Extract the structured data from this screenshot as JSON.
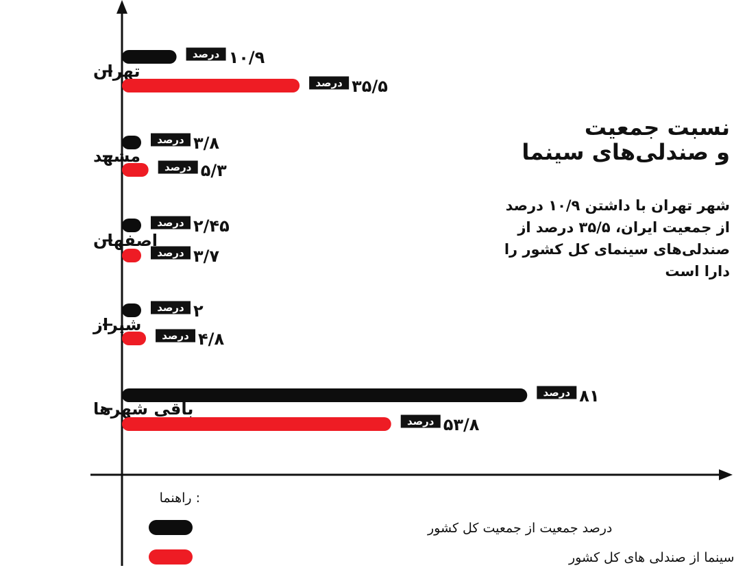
{
  "chart_data": {
    "type": "bar",
    "orientation": "horizontal",
    "categories": [
      "تهران",
      "مشهد",
      "اصفهان",
      "شیراز",
      "باقی شهرها"
    ],
    "series": [
      {
        "name": "درصد جمعیت از جمعیت کل کشور",
        "color": "#0d0d0d",
        "values": [
          10.9,
          3.8,
          2.45,
          2,
          81
        ],
        "labels": [
          "۱۰/۹",
          "۳/۸",
          "۲/۴۵",
          "۲",
          "۸۱"
        ]
      },
      {
        "name": "درصد تعداد صندلی های سینما از صندلی های کل کشور",
        "color": "#ee1c24",
        "values": [
          35.5,
          5.3,
          3.7,
          4.8,
          53.8
        ],
        "labels": [
          "۳۵/۵",
          "۵/۳",
          "۳/۷",
          "۴/۸",
          "۵۳/۸"
        ]
      }
    ],
    "unit_label": "درصد",
    "legend_title": "راهنما :",
    "legend_position": "bottom"
  },
  "title": {
    "line1": "نسبت جمعیت",
    "line2": "و صندلی‌های سینما"
  },
  "description": [
    "شهر تهران با داشتن ۱۰/۹ درصد",
    "از جمعیت ایران، ۳۵/۵ درصد از",
    "صندلی‌های سینمای کل کشور را",
    "دارا است"
  ]
}
